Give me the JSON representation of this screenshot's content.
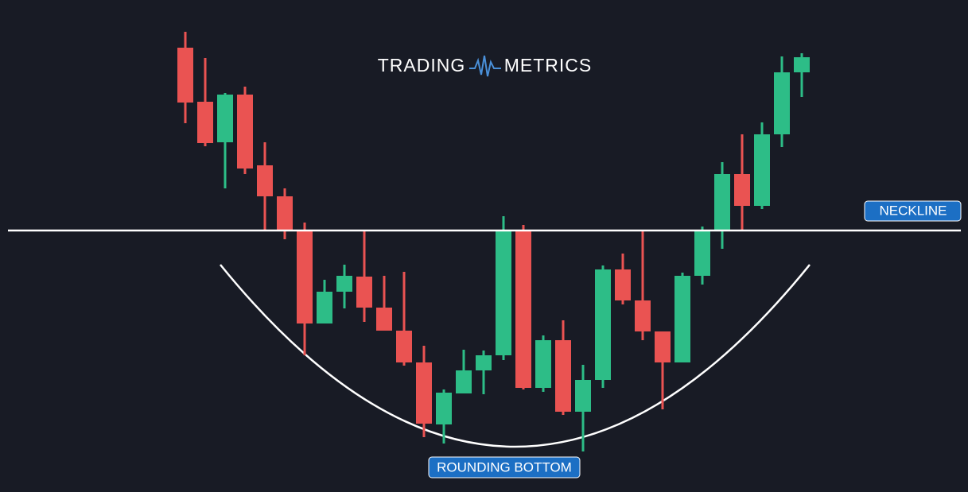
{
  "logo": {
    "left": "TRADING",
    "right": "METRICS"
  },
  "chart_data": {
    "type": "candlestick",
    "ylim": [
      0,
      619
    ],
    "up_color": "#2dbd87",
    "down_color": "#ea5352",
    "open": [
      559,
      491,
      440,
      500,
      411,
      372,
      329,
      212,
      252,
      271,
      232,
      203,
      163,
      85,
      124,
      153,
      172,
      329,
      131,
      191,
      101,
      141,
      280,
      241,
      202,
      163,
      272,
      329,
      400,
      360,
      450,
      528
    ],
    "high": [
      579,
      546,
      502,
      510,
      440,
      382,
      339,
      267,
      286,
      329,
      272,
      277,
      184,
      129,
      179,
      178,
      347,
      336,
      197,
      216,
      160,
      285,
      300,
      329,
      202,
      276,
      334,
      415,
      450,
      465,
      548,
      552
    ],
    "low": [
      464,
      435,
      382,
      400,
      329,
      318,
      172,
      212,
      231,
      214,
      203,
      159,
      69,
      61,
      124,
      123,
      166,
      129,
      126,
      97,
      51,
      131,
      236,
      191,
      104,
      163,
      261,
      306,
      329,
      356,
      434,
      497
    ],
    "close": [
      490,
      439,
      500,
      407,
      372,
      329,
      212,
      252,
      272,
      232,
      203,
      163,
      86,
      125,
      153,
      172,
      329,
      131,
      191,
      101,
      141,
      280,
      241,
      202,
      163,
      272,
      329,
      400,
      360,
      450,
      528,
      547
    ],
    "neckline": {
      "value": 329,
      "label": "NECKLINE"
    },
    "pattern_label": "ROUNDING BOTTOM"
  }
}
